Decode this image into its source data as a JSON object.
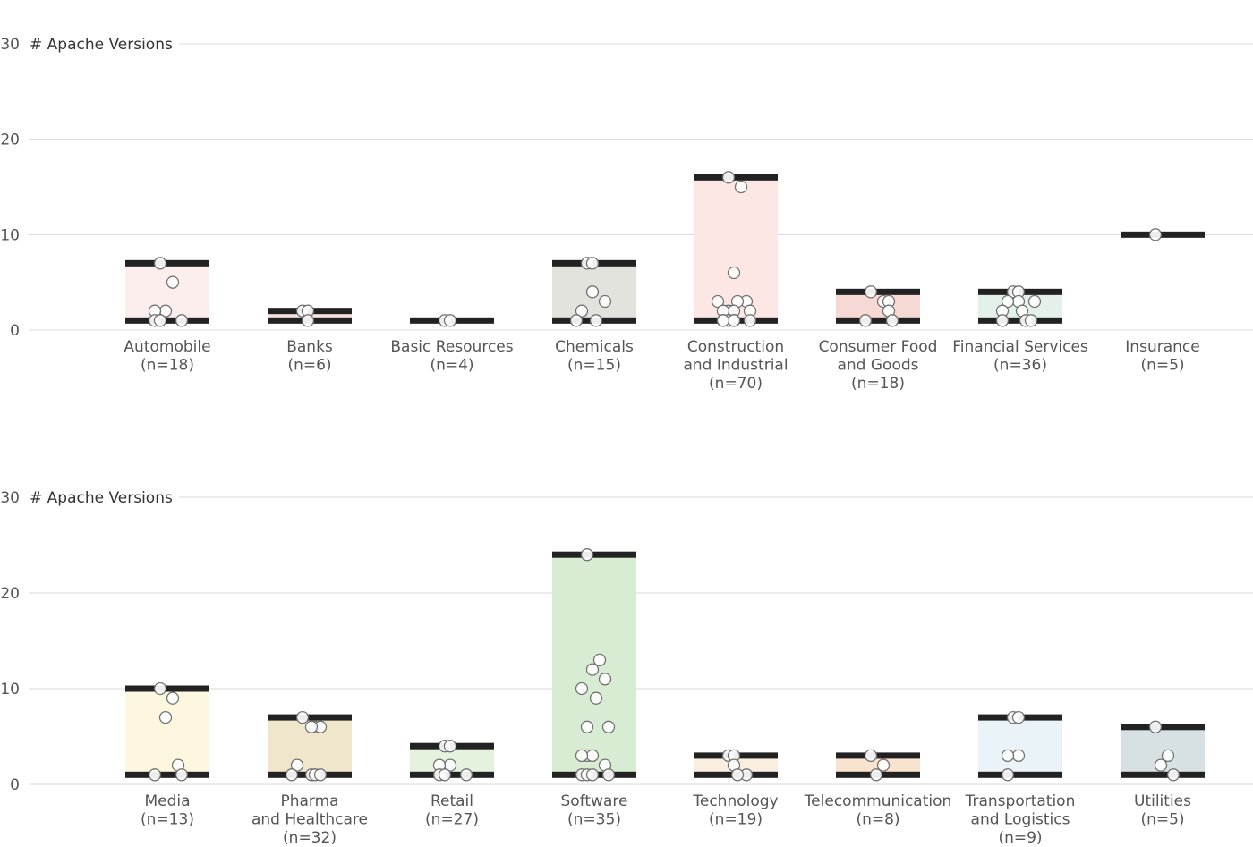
{
  "chart_data": [
    {
      "type": "range-dot",
      "ylabel": "# Apache Versions",
      "ylim": [
        0,
        30
      ],
      "yticks": [
        0,
        10,
        20,
        30
      ],
      "grid": true,
      "categories": [
        {
          "label": [
            "Automobile",
            "(n=18)"
          ],
          "min": 1,
          "max": 7,
          "color": "#fdeeee",
          "points": [
            7,
            5,
            2,
            2,
            1,
            1,
            1
          ]
        },
        {
          "label": [
            "Banks",
            "(n=6)"
          ],
          "min": 1,
          "max": 2,
          "color": "#f6e3e0",
          "points": [
            2,
            2,
            1
          ]
        },
        {
          "label": [
            "Basic Resources",
            "(n=4)"
          ],
          "min": 1,
          "max": 1,
          "color": "#f3e6e8",
          "points": [
            1,
            1
          ]
        },
        {
          "label": [
            "Chemicals",
            "(n=15)"
          ],
          "min": 1,
          "max": 7,
          "color": "#e3e3de",
          "points": [
            7,
            7,
            4,
            3,
            2,
            1,
            1
          ]
        },
        {
          "label": [
            "Construction",
            "and Industrial",
            "(n=70)"
          ],
          "min": 1,
          "max": 16,
          "color": "#fde7e5",
          "points": [
            16,
            15,
            6,
            3,
            3,
            3,
            2,
            2,
            2,
            2,
            1,
            1,
            1,
            1,
            1,
            1
          ]
        },
        {
          "label": [
            "Consumer Food",
            "and Goods",
            "(n=18)"
          ],
          "min": 1,
          "max": 4,
          "color": "#f6d8d4",
          "points": [
            4,
            3,
            3,
            2,
            1,
            1
          ]
        },
        {
          "label": [
            "Financial Services",
            "(n=36)"
          ],
          "min": 1,
          "max": 4,
          "color": "#e4f0ea",
          "points": [
            4,
            4,
            3,
            3,
            3,
            2,
            2,
            1,
            1,
            1
          ]
        },
        {
          "label": [
            "Insurance",
            "(n=5)"
          ],
          "min": 10,
          "max": 10,
          "color": "#ffffff",
          "points": [
            10
          ]
        }
      ]
    },
    {
      "type": "range-dot",
      "ylabel": "# Apache Versions",
      "ylim": [
        0,
        30
      ],
      "yticks": [
        0,
        10,
        20,
        30
      ],
      "grid": true,
      "categories": [
        {
          "label": [
            "Media",
            "(n=13)"
          ],
          "min": 1,
          "max": 10,
          "color": "#fdf7df",
          "points": [
            10,
            9,
            7,
            2,
            1,
            1
          ]
        },
        {
          "label": [
            "Pharma",
            "and Healthcare",
            "(n=32)"
          ],
          "min": 1,
          "max": 7,
          "color": "#efe6cc",
          "points": [
            7,
            6,
            6,
            6,
            2,
            1,
            1,
            1,
            1
          ]
        },
        {
          "label": [
            "Retail",
            "(n=27)"
          ],
          "min": 1,
          "max": 4,
          "color": "#e5f2de",
          "points": [
            4,
            4,
            2,
            2,
            1,
            1,
            1
          ]
        },
        {
          "label": [
            "Software",
            "(n=35)"
          ],
          "min": 1,
          "max": 24,
          "color": "#d8ebd3",
          "points": [
            24,
            13,
            12,
            11,
            10,
            9,
            6,
            6,
            3,
            3,
            3,
            2,
            1,
            1,
            1,
            1
          ]
        },
        {
          "label": [
            "Technology",
            "(n=19)"
          ],
          "min": 1,
          "max": 3,
          "color": "#faeee0",
          "points": [
            3,
            3,
            2,
            1,
            1
          ]
        },
        {
          "label": [
            "Telecommunication",
            "(n=8)"
          ],
          "min": 1,
          "max": 3,
          "color": "#f8e3cf",
          "points": [
            3,
            2,
            1
          ]
        },
        {
          "label": [
            "Transportation",
            "and Logistics",
            "(n=9)"
          ],
          "min": 1,
          "max": 7,
          "color": "#eaf4f8",
          "points": [
            7,
            7,
            3,
            3,
            1
          ]
        },
        {
          "label": [
            "Utilities",
            "(n=5)"
          ],
          "min": 1,
          "max": 6,
          "color": "#d7e1e3",
          "points": [
            6,
            3,
            2,
            1
          ]
        }
      ]
    }
  ]
}
